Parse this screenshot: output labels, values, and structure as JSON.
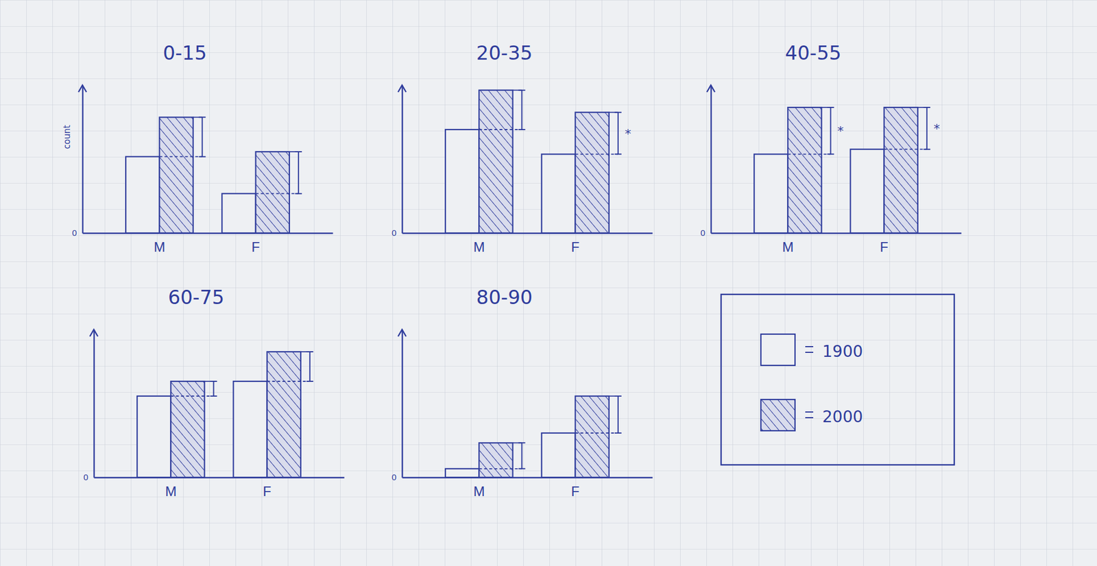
{
  "chart_data": {
    "type": "bar",
    "ylabel": "count",
    "categories": [
      "M",
      "F"
    ],
    "series": [
      {
        "name": "1900",
        "color": "#eef0f3"
      },
      {
        "name": "2000",
        "color": "#2f3c9c"
      }
    ],
    "ylim": [
      0,
      6
    ],
    "yticks": [
      0
    ],
    "panels": [
      {
        "title": "0-15",
        "series": [
          {
            "values": [
              3.1,
              1.6
            ]
          },
          {
            "values": [
              4.7,
              3.3
            ]
          }
        ],
        "annotations": [
          null,
          null
        ]
      },
      {
        "title": "20-35",
        "series": [
          {
            "values": [
              4.2,
              3.2
            ]
          },
          {
            "values": [
              5.8,
              4.9
            ]
          }
        ],
        "annotations": [
          null,
          "*"
        ]
      },
      {
        "title": "40-55",
        "series": [
          {
            "values": [
              3.2,
              3.4
            ]
          },
          {
            "values": [
              5.1,
              5.1
            ]
          }
        ],
        "annotations": [
          "*",
          "*"
        ]
      },
      {
        "title": "60-75",
        "series": [
          {
            "values": [
              3.3,
              3.9
            ]
          },
          {
            "values": [
              3.9,
              5.1
            ]
          }
        ],
        "annotations": [
          null,
          null
        ]
      },
      {
        "title": "80-90",
        "series": [
          {
            "values": [
              0.35,
              1.8
            ]
          },
          {
            "values": [
              1.4,
              3.3
            ]
          }
        ],
        "annotations": [
          null,
          null
        ]
      }
    ]
  }
}
